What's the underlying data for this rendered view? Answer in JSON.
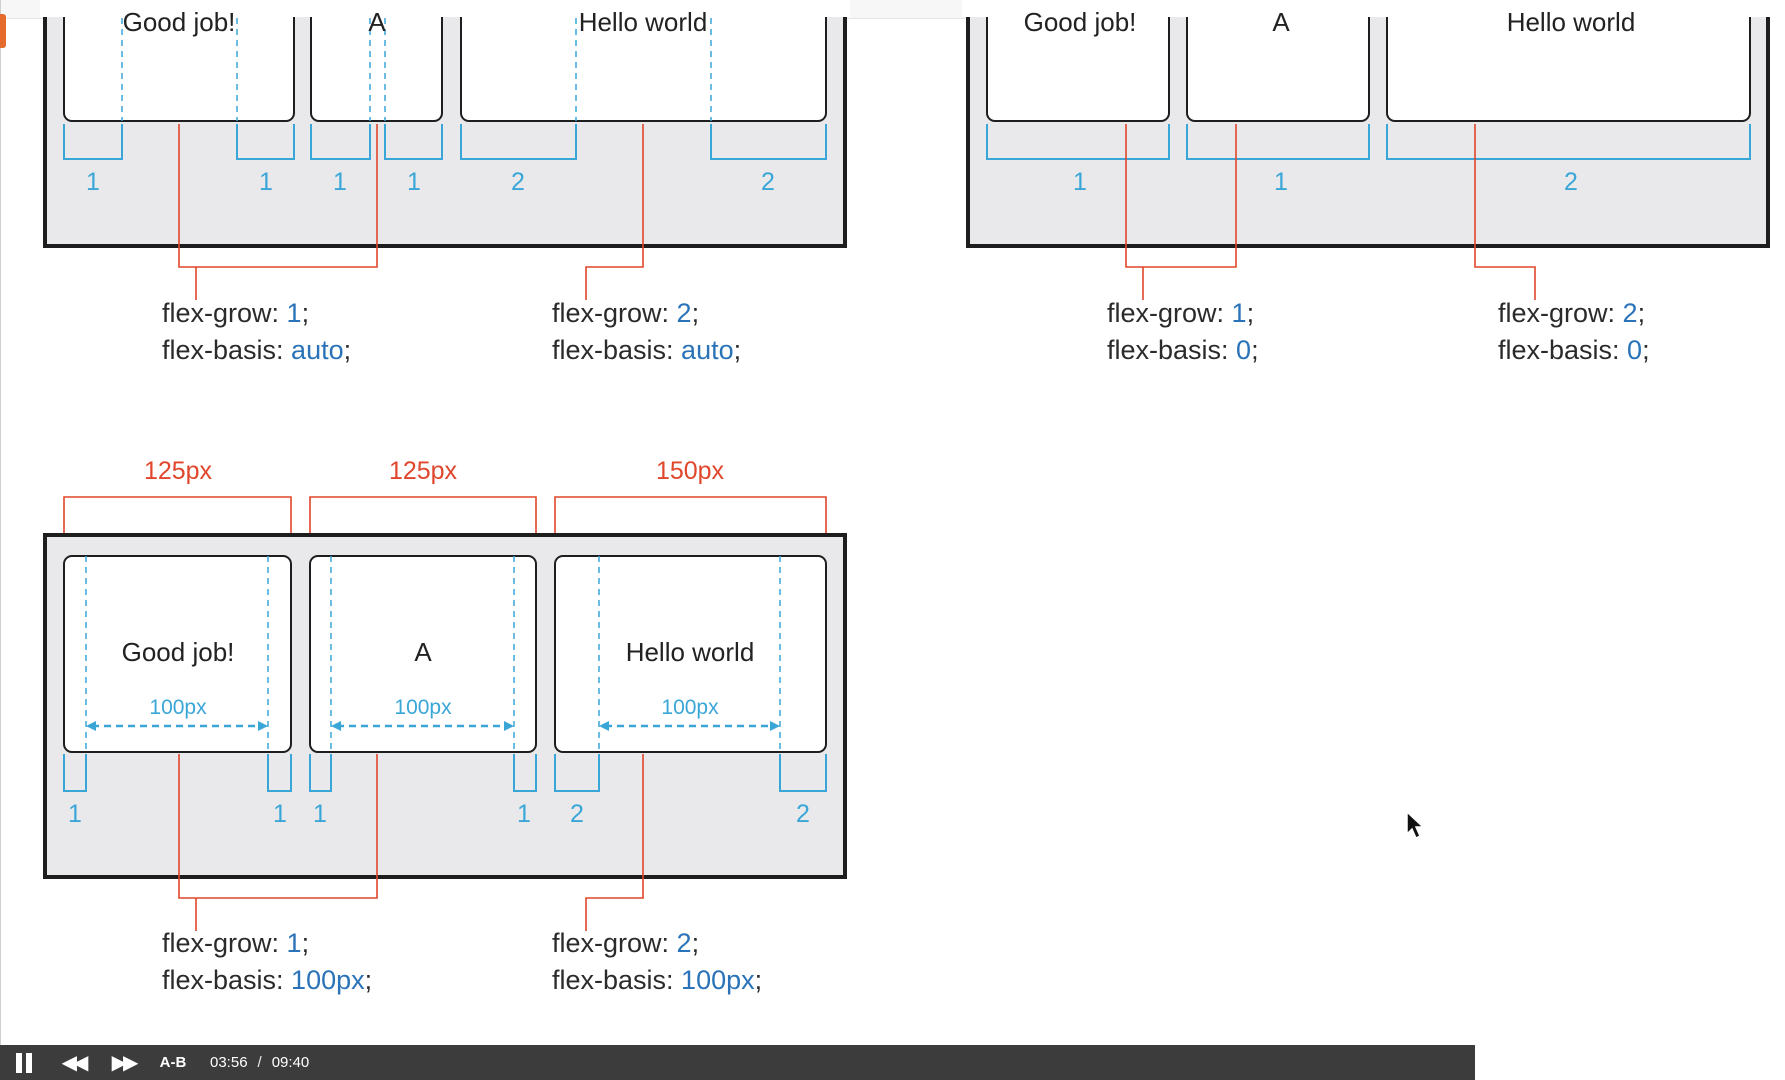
{
  "diagrams": [
    {
      "items": [
        {
          "text": "Good job!",
          "grow": [
            "1",
            "1"
          ]
        },
        {
          "text": "A",
          "grow": [
            "1",
            "1"
          ]
        },
        {
          "text": "Hello world",
          "grow": [
            "2",
            "2"
          ]
        }
      ],
      "notes": [
        {
          "prop1": "flex-grow: ",
          "val1": "1",
          "prop2": "flex-basis: ",
          "val2": "auto"
        },
        {
          "prop1": "flex-grow: ",
          "val1": "2",
          "prop2": "flex-basis: ",
          "val2": "auto"
        }
      ]
    },
    {
      "items": [
        {
          "text": "Good job!",
          "grow": [
            "1"
          ]
        },
        {
          "text": "A",
          "grow": [
            "1"
          ]
        },
        {
          "text": "Hello world",
          "grow": [
            "2"
          ]
        }
      ],
      "notes": [
        {
          "prop1": "flex-grow: ",
          "val1": "1",
          "prop2": "flex-basis: ",
          "val2": "0"
        },
        {
          "prop1": "flex-grow: ",
          "val1": "2",
          "prop2": "flex-basis: ",
          "val2": "0"
        }
      ]
    },
    {
      "items": [
        {
          "text": "Good job!",
          "grow": [
            "1",
            "1"
          ],
          "total": "125px",
          "basis": "100px"
        },
        {
          "text": "A",
          "grow": [
            "1",
            "1"
          ],
          "total": "125px",
          "basis": "100px"
        },
        {
          "text": "Hello world",
          "grow": [
            "2",
            "2"
          ],
          "total": "150px",
          "basis": "100px"
        }
      ],
      "notes": [
        {
          "prop1": "flex-grow: ",
          "val1": "1",
          "prop2": "flex-basis: ",
          "val2": "100px"
        },
        {
          "prop1": "flex-grow: ",
          "val1": "2",
          "prop2": "flex-basis: ",
          "val2": "100px"
        }
      ]
    }
  ],
  "player": {
    "ab_label": "A-B",
    "current_time": "03:56",
    "separator": "/",
    "total_time": "09:40"
  },
  "colors": {
    "accent_red": "#e0462b",
    "accent_blue": "#3aa6d8",
    "code_value_blue": "#2a73b8",
    "player_bg": "#3c3c3c"
  },
  "icons": [
    "pause-icon",
    "rewind-icon",
    "fast-forward-icon",
    "mouse-cursor-icon"
  ]
}
